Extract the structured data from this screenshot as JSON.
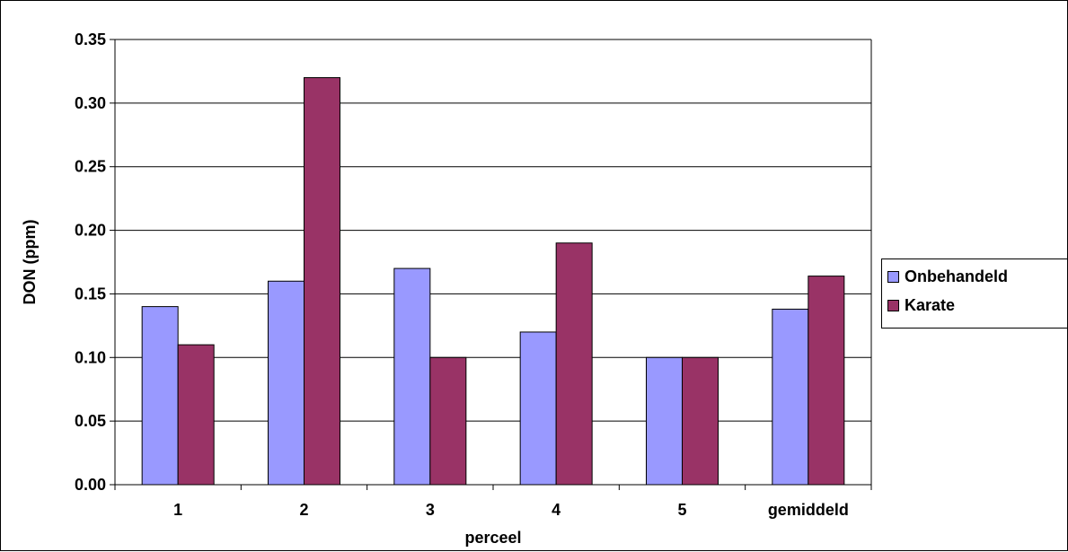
{
  "chart_data": {
    "type": "bar",
    "categories": [
      "1",
      "2",
      "3",
      "4",
      "5",
      "gemiddeld"
    ],
    "series": [
      {
        "name": "Onbehandeld",
        "values": [
          0.14,
          0.16,
          0.17,
          0.12,
          0.1,
          0.138
        ],
        "color": "#9999FF"
      },
      {
        "name": "Karate",
        "values": [
          0.11,
          0.32,
          0.1,
          0.19,
          0.1,
          0.164
        ],
        "color": "#993366"
      }
    ],
    "xlabel": "perceel",
    "ylabel": "DON (ppm)",
    "ylim": [
      0,
      0.35
    ],
    "yticks": [
      "0.00",
      "0.05",
      "0.10",
      "0.15",
      "0.20",
      "0.25",
      "0.30",
      "0.35"
    ],
    "grid": true,
    "legend_position": "right"
  }
}
